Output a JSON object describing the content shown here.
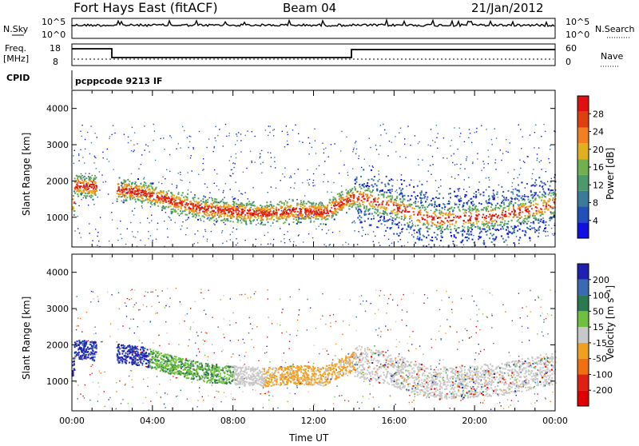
{
  "header": {
    "title": "Fort Hays East (fitACF)",
    "beam": "Beam 04",
    "date": "21/Jan/2012"
  },
  "strips": {
    "nsky_label": "N.Sky",
    "nsky_ticks": [
      "10^5",
      "10^0"
    ],
    "nsearch_label": "N.Search",
    "nsearch_ticks": [
      "10^5",
      "10^0"
    ],
    "freq_label": "Freq.",
    "freq_unit": "[MHz]",
    "freq_ticks": [
      "18",
      "8"
    ],
    "nave_label": "Nave",
    "nave_ticks": [
      "60",
      "0"
    ],
    "cpid_label": "CPID",
    "cpid_text": "pcppcode 9213 IF"
  },
  "chart_data": [
    {
      "type": "heatmap",
      "name": "power",
      "ylabel": "Slant Range [km]",
      "ylim": [
        180,
        4500
      ],
      "yticks": [
        1000,
        2000,
        3000,
        4000
      ],
      "xlim": [
        0,
        24
      ],
      "colorbar": {
        "label": "Power [dB]",
        "ticks": [
          "4",
          "8",
          "12",
          "16",
          "20",
          "24",
          "28"
        ],
        "colors": [
          "#1010e0",
          "#2050b8",
          "#3a7a9a",
          "#4a9a6a",
          "#70b050",
          "#e0b020",
          "#f08020",
          "#e04010",
          "#e01010"
        ]
      },
      "scatter_band": [
        [
          0.1,
          1900
        ],
        [
          2.0,
          1800
        ],
        [
          3.5,
          1700
        ],
        [
          5.0,
          1450
        ],
        [
          6.5,
          1250
        ],
        [
          8.0,
          1180
        ],
        [
          9.5,
          1120
        ],
        [
          11.0,
          1200
        ],
        [
          12.5,
          1150
        ],
        [
          14.0,
          1600
        ],
        [
          15.0,
          1450
        ],
        [
          16.0,
          1300
        ],
        [
          17.0,
          1100
        ],
        [
          18.0,
          950
        ],
        [
          19.5,
          1000
        ],
        [
          21.0,
          1050
        ],
        [
          22.5,
          1200
        ],
        [
          24.0,
          1400
        ]
      ]
    },
    {
      "type": "heatmap",
      "name": "velocity",
      "ylabel": "Slant Range [km]",
      "ylim": [
        180,
        4500
      ],
      "yticks": [
        1000,
        2000,
        3000,
        4000
      ],
      "xlim": [
        0,
        24
      ],
      "xticks": [
        "00:00",
        "04:00",
        "08:00",
        "12:00",
        "16:00",
        "20:00",
        "00:00"
      ],
      "xlabel": "Time UT",
      "colorbar": {
        "label": "Velocity [m s⁻¹]",
        "ticks": [
          "200",
          "100",
          "50",
          "15",
          "-15",
          "-50",
          "-100",
          "-200"
        ],
        "colors": [
          "#2020b0",
          "#3a6ab0",
          "#2a7a50",
          "#70c040",
          "#c8c8c8",
          "#f0a020",
          "#f07010",
          "#e02010",
          "#e00000"
        ]
      }
    }
  ]
}
